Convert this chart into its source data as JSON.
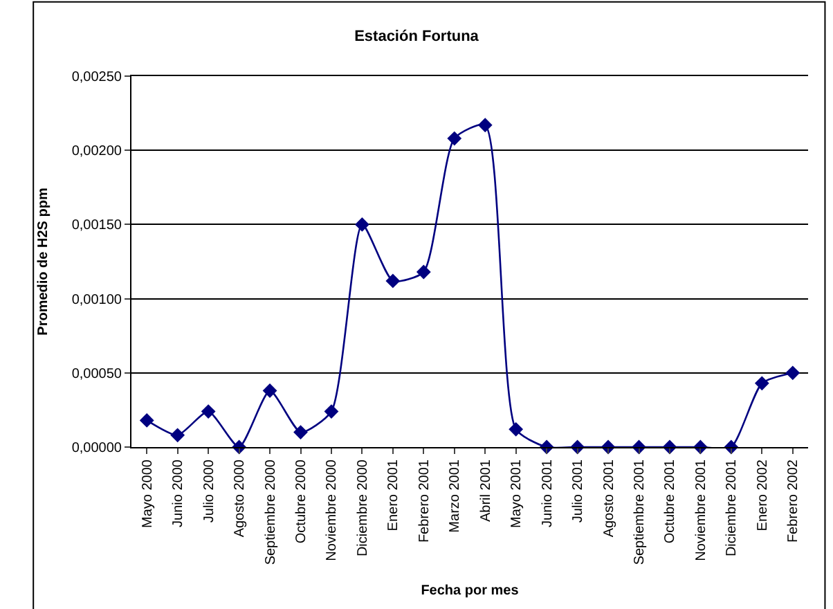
{
  "chart_data": {
    "type": "line",
    "title": "Estación Fortuna",
    "xlabel": "Fecha por mes",
    "ylabel": "Promedio de H2S ppm",
    "categories": [
      "Mayo 2000",
      "Junio 2000",
      "Julio 2000",
      "Agosto 2000",
      "Septiembre 2000",
      "Octubre 2000",
      "Noviembre 2000",
      "Diciembre 2000",
      "Enero 2001",
      "Febrero 2001",
      "Marzo 2001",
      "Abril 2001",
      "Mayo 2001",
      "Junio 2001",
      "Julio 2001",
      "Agosto 2001",
      "Septiembre 2001",
      "Octubre 2001",
      "Noviembre 2001",
      "Diciembre 2001",
      "Enero 2002",
      "Febrero 2002"
    ],
    "series": [
      {
        "color": "#000080",
        "values": [
          0.00018,
          8e-05,
          0.00024,
          0.0,
          0.00038,
          0.0001,
          0.00024,
          0.0015,
          0.00112,
          0.00118,
          0.00208,
          0.00217,
          0.00012,
          0.0,
          0.0,
          0.0,
          0.0,
          0.0,
          0.0,
          0.0,
          0.00043,
          0.0005
        ]
      }
    ],
    "ylim": [
      0,
      0.0025
    ],
    "yticks": [
      {
        "value": 0,
        "label": "0,00000"
      },
      {
        "value": 0.0005,
        "label": "0,00050"
      },
      {
        "value": 0.001,
        "label": "0,00100"
      },
      {
        "value": 0.0015,
        "label": "0,00150"
      },
      {
        "value": 0.002,
        "label": "0,00200"
      },
      {
        "value": 0.0025,
        "label": "0,00250"
      }
    ],
    "grid": "y",
    "marker": "diamond",
    "line_style": "solid"
  }
}
